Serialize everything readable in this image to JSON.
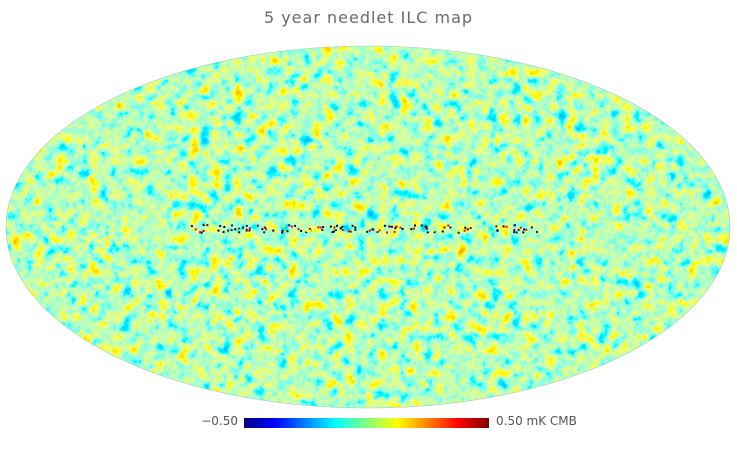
{
  "title": "5 year needlet ILC map",
  "colorbar": {
    "min_label": "−0.50",
    "max_label": "0.50 mK CMB",
    "range": [
      -0.5,
      0.5
    ],
    "colormap": [
      "#00007f",
      "#0000ff",
      "#0080ff",
      "#00ffff",
      "#80ff80",
      "#ffff00",
      "#ff8000",
      "#ff0000",
      "#7f0000"
    ]
  },
  "map": {
    "projection": "mollweide",
    "content": "CMB temperature anisotropy sky map"
  }
}
